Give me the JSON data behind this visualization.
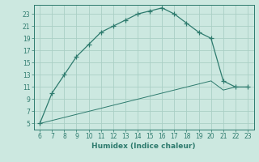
{
  "xlabel": "Humidex (Indice chaleur)",
  "x_values": [
    6,
    7,
    8,
    9,
    10,
    11,
    12,
    13,
    14,
    15,
    16,
    17,
    18,
    19,
    20,
    21,
    22,
    23
  ],
  "y_curve": [
    5,
    10,
    13,
    16,
    18,
    20,
    21,
    22,
    23,
    23.5,
    24,
    23,
    21.5,
    20,
    19,
    12,
    11,
    11
  ],
  "y_line": [
    5,
    5.5,
    6.0,
    6.5,
    7.0,
    7.5,
    8.0,
    8.5,
    9.0,
    9.5,
    10.0,
    10.5,
    11.0,
    11.5,
    12.0,
    10.5,
    11,
    11
  ],
  "line_color": "#2e7b6e",
  "bg_color": "#cce8e0",
  "grid_color": "#aacfc5",
  "xlim": [
    5.5,
    23.5
  ],
  "ylim": [
    4,
    24.5
  ],
  "xticks": [
    6,
    7,
    8,
    9,
    10,
    11,
    12,
    13,
    14,
    15,
    16,
    17,
    18,
    19,
    20,
    21,
    22,
    23
  ],
  "yticks": [
    5,
    7,
    9,
    11,
    13,
    15,
    17,
    19,
    21,
    23
  ],
  "tick_fontsize": 5.5,
  "xlabel_fontsize": 6.5
}
